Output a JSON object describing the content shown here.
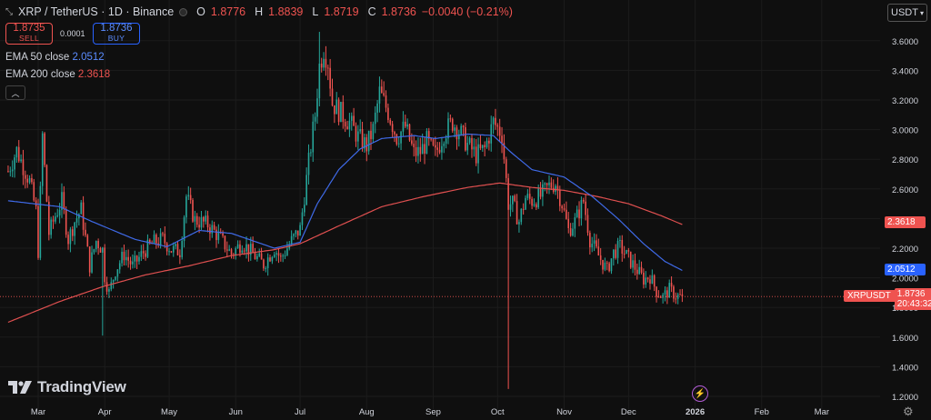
{
  "header": {
    "symbol": "XRP / TetherUS · 1D · Binance",
    "o_label": "O",
    "o": "1.8776",
    "h_label": "H",
    "h": "1.8839",
    "l_label": "L",
    "l": "1.8719",
    "c_label": "C",
    "c": "1.8736",
    "change": "−0.0040 (−0.21%)"
  },
  "trade": {
    "sell_price": "1.8735",
    "sell_label": "SELL",
    "spread": "0.0001",
    "buy_price": "1.8736",
    "buy_label": "BUY"
  },
  "indicators": {
    "ema50_label": "EMA 50 close",
    "ema50_value": "2.0512",
    "ema200_label": "EMA 200 close",
    "ema200_value": "2.3618"
  },
  "currency_button": "USDT",
  "brand": "TradingView",
  "price_tags": {
    "ema200": "2.3618",
    "ema50": "2.0512",
    "symbol": "XRPUSDT",
    "last": "1.8736",
    "countdown": "20:43:32"
  },
  "colors": {
    "up": "#26a69a",
    "down": "#ef5350",
    "ema50": "#3f6ae8",
    "ema200": "#e05050",
    "background": "#0f0f0f",
    "grid": "#1c1c1c"
  },
  "chart_data": {
    "type": "candlestick",
    "ylim": [
      1.2,
      3.7
    ],
    "y_ticks": [
      1.2,
      1.4,
      1.6,
      1.8,
      2.0,
      2.2,
      2.4,
      2.6,
      2.8,
      3.0,
      3.2,
      3.4,
      3.6
    ],
    "y_tick_labels": [
      "1.2000",
      "1.4000",
      "1.6000",
      "1.8000",
      "2.0000",
      "2.2000",
      "2.4000",
      "2.6000",
      "2.8000",
      "3.0000",
      "3.2000",
      "3.4000",
      "3.6000"
    ],
    "x_labels": [
      "Mar",
      "Apr",
      "May",
      "Jun",
      "Jul",
      "Aug",
      "Sep",
      "Oct",
      "Nov",
      "Dec",
      "2026",
      "Feb",
      "Mar"
    ],
    "x_label_days": [
      0,
      31,
      61,
      92,
      122,
      153,
      184,
      214,
      245,
      275,
      306,
      337,
      365
    ],
    "x_range_days": [
      -14,
      380
    ],
    "close_anchors": [
      [
        -14,
        2.72
      ],
      [
        -10,
        2.86
      ],
      [
        -4,
        2.65
      ],
      [
        -1,
        2.45
      ],
      [
        0,
        2.18
      ],
      [
        2,
        2.96
      ],
      [
        5,
        2.3
      ],
      [
        8,
        2.42
      ],
      [
        11,
        2.52
      ],
      [
        14,
        2.26
      ],
      [
        17,
        2.38
      ],
      [
        20,
        2.46
      ],
      [
        24,
        2.08
      ],
      [
        27,
        2.25
      ],
      [
        30,
        2.19
      ],
      [
        31,
        2.01
      ],
      [
        33,
        1.9
      ],
      [
        36,
        2.05
      ],
      [
        40,
        2.16
      ],
      [
        44,
        2.08
      ],
      [
        50,
        2.19
      ],
      [
        54,
        2.24
      ],
      [
        58,
        2.26
      ],
      [
        62,
        2.19
      ],
      [
        66,
        2.18
      ],
      [
        69,
        2.55
      ],
      [
        73,
        2.39
      ],
      [
        79,
        2.36
      ],
      [
        84,
        2.28
      ],
      [
        90,
        2.16
      ],
      [
        95,
        2.24
      ],
      [
        100,
        2.16
      ],
      [
        105,
        2.09
      ],
      [
        110,
        2.2
      ],
      [
        113,
        2.13
      ],
      [
        118,
        2.25
      ],
      [
        122,
        2.33
      ],
      [
        126,
        2.78
      ],
      [
        129,
        3.1
      ],
      [
        131,
        3.43
      ],
      [
        133,
        3.55
      ],
      [
        135,
        3.46
      ],
      [
        137,
        3.18
      ],
      [
        141,
        3.11
      ],
      [
        145,
        3.05
      ],
      [
        149,
        2.95
      ],
      [
        153,
        2.89
      ],
      [
        156,
        3.0
      ],
      [
        159,
        3.25
      ],
      [
        163,
        3.12
      ],
      [
        167,
        2.95
      ],
      [
        171,
        3.02
      ],
      [
        175,
        2.84
      ],
      [
        178,
        2.85
      ],
      [
        181,
        2.92
      ],
      [
        185,
        2.83
      ],
      [
        189,
        2.98
      ],
      [
        193,
        3.05
      ],
      [
        197,
        2.97
      ],
      [
        200,
        2.9
      ],
      [
        204,
        2.83
      ],
      [
        208,
        2.87
      ],
      [
        212,
        3.05
      ],
      [
        216,
        2.97
      ],
      [
        219,
        2.5
      ],
      [
        221,
        2.5
      ],
      [
        224,
        2.38
      ],
      [
        227,
        2.54
      ],
      [
        230,
        2.52
      ],
      [
        234,
        2.55
      ],
      [
        238,
        2.62
      ],
      [
        241,
        2.64
      ],
      [
        244,
        2.5
      ],
      [
        247,
        2.32
      ],
      [
        250,
        2.38
      ],
      [
        254,
        2.52
      ],
      [
        257,
        2.26
      ],
      [
        261,
        2.15
      ],
      [
        265,
        2.05
      ],
      [
        268,
        2.17
      ],
      [
        271,
        2.21
      ],
      [
        275,
        2.13
      ],
      [
        279,
        2.05
      ],
      [
        282,
        1.99
      ],
      [
        285,
        2.01
      ],
      [
        288,
        1.91
      ],
      [
        291,
        1.87
      ],
      [
        294,
        1.92
      ],
      [
        297,
        1.88
      ],
      [
        300,
        1.87
      ]
    ],
    "ema50": [
      [
        -14,
        2.52
      ],
      [
        10,
        2.48
      ],
      [
        25,
        2.38
      ],
      [
        45,
        2.26
      ],
      [
        60,
        2.21
      ],
      [
        75,
        2.32
      ],
      [
        90,
        2.3
      ],
      [
        110,
        2.2
      ],
      [
        122,
        2.24
      ],
      [
        130,
        2.5
      ],
      [
        140,
        2.73
      ],
      [
        150,
        2.87
      ],
      [
        160,
        2.94
      ],
      [
        175,
        2.96
      ],
      [
        185,
        2.94
      ],
      [
        200,
        2.97
      ],
      [
        212,
        2.96
      ],
      [
        220,
        2.85
      ],
      [
        230,
        2.73
      ],
      [
        245,
        2.68
      ],
      [
        258,
        2.55
      ],
      [
        270,
        2.4
      ],
      [
        282,
        2.23
      ],
      [
        292,
        2.11
      ],
      [
        300,
        2.05
      ]
    ],
    "ema200": [
      [
        -14,
        1.7
      ],
      [
        10,
        1.84
      ],
      [
        30,
        1.94
      ],
      [
        50,
        2.02
      ],
      [
        70,
        2.08
      ],
      [
        90,
        2.15
      ],
      [
        110,
        2.19
      ],
      [
        122,
        2.23
      ],
      [
        140,
        2.35
      ],
      [
        160,
        2.48
      ],
      [
        180,
        2.55
      ],
      [
        200,
        2.61
      ],
      [
        215,
        2.64
      ],
      [
        230,
        2.61
      ],
      [
        245,
        2.59
      ],
      [
        260,
        2.55
      ],
      [
        275,
        2.5
      ],
      [
        290,
        2.42
      ],
      [
        300,
        2.36
      ]
    ],
    "wick_extremes": [
      {
        "day": 219,
        "low": 1.25
      },
      {
        "day": 30,
        "low": 1.61
      },
      {
        "day": 2,
        "high": 2.99
      },
      {
        "day": 131,
        "high": 3.66
      }
    ],
    "last_price": 1.8736,
    "last_day": 300
  }
}
